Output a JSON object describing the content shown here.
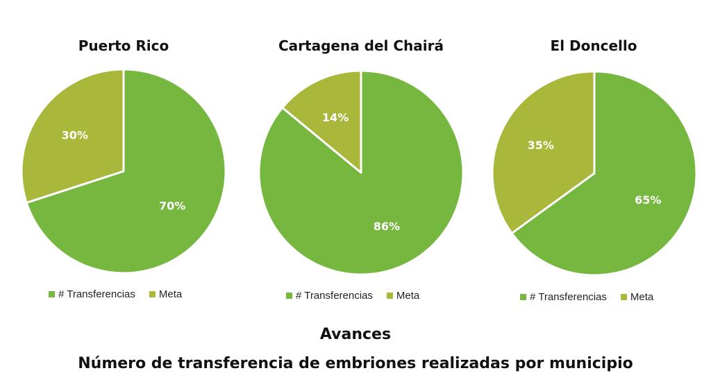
{
  "colors": {
    "transferencias": "#76b740",
    "meta": "#a9b83a",
    "separator": "#ffffff",
    "label": "#ffffff"
  },
  "legend": {
    "transferencias_label": "# Transferencias",
    "meta_label": "Meta"
  },
  "footer": {
    "title": "Avances",
    "subtitle": "Número de transferencia de embriones realizadas por municipio"
  },
  "chart_data": [
    {
      "type": "pie",
      "title": "Puerto Rico",
      "labels": [
        "# Transferencias",
        "Meta"
      ],
      "values": [
        70,
        30
      ],
      "data_labels": [
        "70%",
        "30%"
      ]
    },
    {
      "type": "pie",
      "title": "Cartagena del Chairá",
      "labels": [
        "# Transferencias",
        "Meta"
      ],
      "values": [
        86,
        14
      ],
      "data_labels": [
        "86%",
        "14%"
      ]
    },
    {
      "type": "pie",
      "title": "El Doncello",
      "labels": [
        "# Transferencias",
        "Meta"
      ],
      "values": [
        65,
        35
      ],
      "data_labels": [
        "65%",
        "35%"
      ]
    }
  ]
}
